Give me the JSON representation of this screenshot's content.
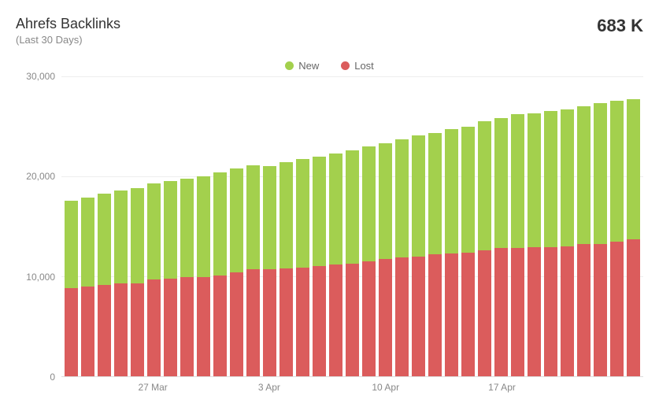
{
  "header": {
    "title": "Ahrefs Backlinks",
    "subtitle": "(Last 30 Days)",
    "metric": "683 K"
  },
  "legend": {
    "new": {
      "label": "New",
      "color": "#a3d04d"
    },
    "lost": {
      "label": "Lost",
      "color": "#db5c5c"
    }
  },
  "chart": {
    "type": "stacked-bar",
    "ylim": [
      0,
      30000
    ],
    "yticks": [
      0,
      10000,
      20000,
      30000
    ],
    "ytick_labels": [
      "0",
      "10,000",
      "20,000",
      "30,000"
    ],
    "grid_color": "#eeeeee",
    "axis_color": "#dddddd",
    "background_color": "#ffffff",
    "label_color": "#888888",
    "label_fontsize": 12,
    "xticks": [
      {
        "index": 5,
        "label": "27 Mar"
      },
      {
        "index": 12,
        "label": "3 Apr"
      },
      {
        "index": 19,
        "label": "10 Apr"
      },
      {
        "index": 26,
        "label": "17 Apr"
      }
    ],
    "series_order": [
      "lost",
      "new"
    ],
    "colors": {
      "lost": "#db5c5c",
      "new": "#a3d04d"
    },
    "bars": [
      {
        "lost": 8800,
        "new": 8800
      },
      {
        "lost": 9000,
        "new": 8900
      },
      {
        "lost": 9100,
        "new": 9200
      },
      {
        "lost": 9300,
        "new": 9300
      },
      {
        "lost": 9300,
        "new": 9500
      },
      {
        "lost": 9700,
        "new": 9600
      },
      {
        "lost": 9800,
        "new": 9700
      },
      {
        "lost": 9900,
        "new": 9900
      },
      {
        "lost": 9900,
        "new": 10100
      },
      {
        "lost": 10100,
        "new": 10300
      },
      {
        "lost": 10400,
        "new": 10400
      },
      {
        "lost": 10700,
        "new": 10400
      },
      {
        "lost": 10700,
        "new": 10300
      },
      {
        "lost": 10800,
        "new": 10600
      },
      {
        "lost": 10900,
        "new": 10800
      },
      {
        "lost": 11000,
        "new": 11000
      },
      {
        "lost": 11200,
        "new": 11100
      },
      {
        "lost": 11300,
        "new": 11300
      },
      {
        "lost": 11500,
        "new": 11500
      },
      {
        "lost": 11700,
        "new": 11600
      },
      {
        "lost": 11900,
        "new": 11800
      },
      {
        "lost": 12000,
        "new": 12100
      },
      {
        "lost": 12200,
        "new": 12100
      },
      {
        "lost": 12300,
        "new": 12400
      },
      {
        "lost": 12400,
        "new": 12600
      },
      {
        "lost": 12600,
        "new": 12900
      },
      {
        "lost": 12800,
        "new": 13000
      },
      {
        "lost": 12800,
        "new": 13400
      },
      {
        "lost": 12900,
        "new": 13400
      },
      {
        "lost": 12900,
        "new": 13600
      },
      {
        "lost": 13000,
        "new": 13700
      },
      {
        "lost": 13200,
        "new": 13800
      },
      {
        "lost": 13200,
        "new": 14100
      },
      {
        "lost": 13500,
        "new": 14100
      },
      {
        "lost": 13700,
        "new": 14000
      }
    ]
  }
}
